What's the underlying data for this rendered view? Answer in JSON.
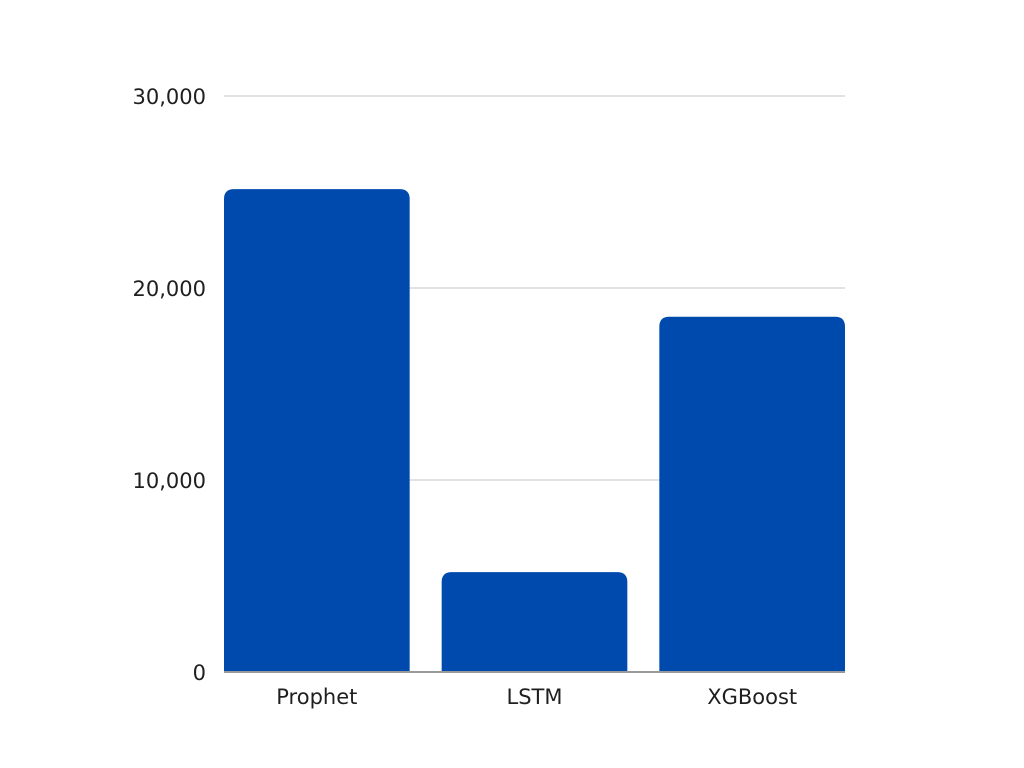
{
  "chart_data": {
    "type": "bar",
    "title": "",
    "xlabel": "",
    "ylabel": "",
    "categories": [
      "Prophet",
      "LSTM",
      "XGBoost"
    ],
    "values": [
      25150,
      5200,
      18500
    ],
    "ylim": [
      0,
      30000
    ],
    "yticks": [
      0,
      10000,
      20000,
      30000
    ],
    "ytick_labels": [
      "0",
      "10,000",
      "20,000",
      "30,000"
    ],
    "grid": true,
    "legend": "none",
    "bar_color": "#004aad",
    "grid_color": "#d9d9d9",
    "axis_color": "#9a9a9a",
    "text_color": "#1f1f1f"
  }
}
